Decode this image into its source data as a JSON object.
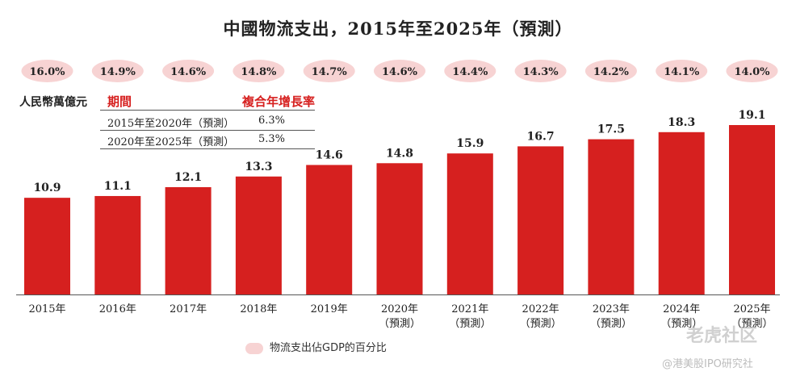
{
  "chart_data": {
    "type": "bar",
    "title": "中國物流支出，2015年至2025年（預測）",
    "unit_label": "人民幣萬億元",
    "categories": [
      "2015年",
      "2016年",
      "2017年",
      "2018年",
      "2019年",
      "2020年",
      "2021年",
      "2022年",
      "2023年",
      "2024年",
      "2025年"
    ],
    "forecast_suffix": "（預測）",
    "forecast_flags": [
      false,
      false,
      false,
      false,
      false,
      true,
      true,
      true,
      true,
      true,
      true
    ],
    "values": [
      10.9,
      11.1,
      12.1,
      13.3,
      14.6,
      14.8,
      15.9,
      16.7,
      17.5,
      18.3,
      19.1
    ],
    "gdp_share": [
      "16.0%",
      "14.9%",
      "14.6%",
      "14.8%",
      "14.7%",
      "14.6%",
      "14.4%",
      "14.3%",
      "14.2%",
      "14.1%",
      "14.0%"
    ],
    "gdp_share_label": "物流支出佔GDP的百分比",
    "ylim": [
      0,
      20
    ],
    "bar_color": "#d6201f",
    "pill_color": "#f7d3d3",
    "cagr_table": {
      "headers": [
        "期間",
        "複合年增長率"
      ],
      "rows": [
        {
          "period": "2015年至2020年（預測）",
          "rate": "6.3%"
        },
        {
          "period": "2020年至2025年（預測）",
          "rate": "5.3%"
        }
      ]
    }
  },
  "watermark": {
    "line1": "老虎社区",
    "line2": "@港美股IPO研究社"
  }
}
